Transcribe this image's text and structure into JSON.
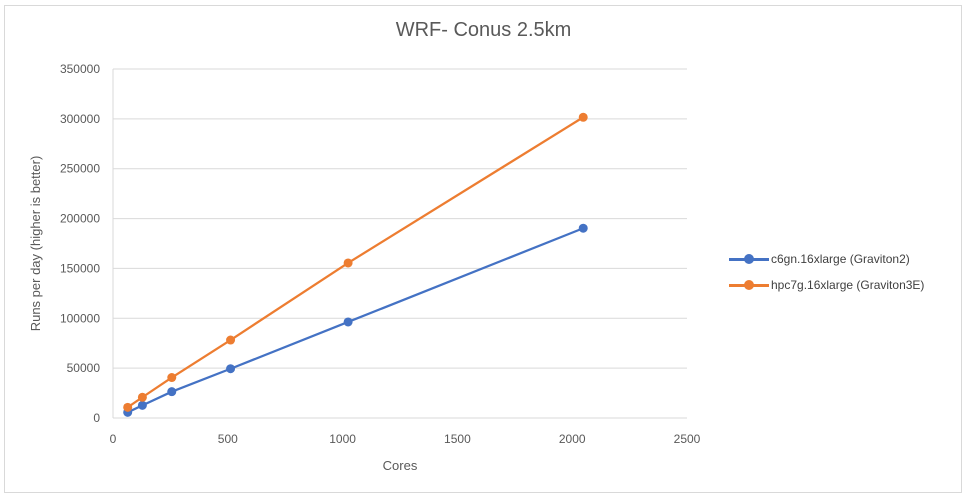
{
  "chart_data": {
    "type": "line",
    "title": "WRF- Conus 2.5km",
    "xlabel": "Cores",
    "ylabel": "Runs per day (higher is better)",
    "xlim": [
      0,
      2500
    ],
    "ylim": [
      0,
      350000
    ],
    "x_ticks": [
      0,
      500,
      1000,
      1500,
      2000,
      2500
    ],
    "y_ticks": [
      0,
      50000,
      100000,
      150000,
      200000,
      250000,
      300000,
      350000
    ],
    "grid": "horizontal",
    "legend_position": "right",
    "x": [
      64,
      128,
      256,
      512,
      1024,
      2048
    ],
    "series": [
      {
        "name": "c6gn.16xlarge (Graviton2)",
        "color": "#4472c4",
        "values": [
          5700,
          12700,
          26400,
          49400,
          96300,
          190300
        ]
      },
      {
        "name": "hpc7g.16xlarge (Graviton3E)",
        "color": "#ed7d31",
        "values": [
          10700,
          20800,
          40600,
          78200,
          155500,
          301600
        ]
      }
    ]
  },
  "labels": {
    "title": "WRF- Conus 2.5km",
    "xlabel": "Cores",
    "ylabel": "Runs per day (higher is better)",
    "legend": [
      {
        "label": "c6gn.16xlarge (Graviton2)",
        "color": "#4472c4"
      },
      {
        "label": "hpc7g.16xlarge (Graviton3E)",
        "color": "#ed7d31"
      }
    ]
  }
}
